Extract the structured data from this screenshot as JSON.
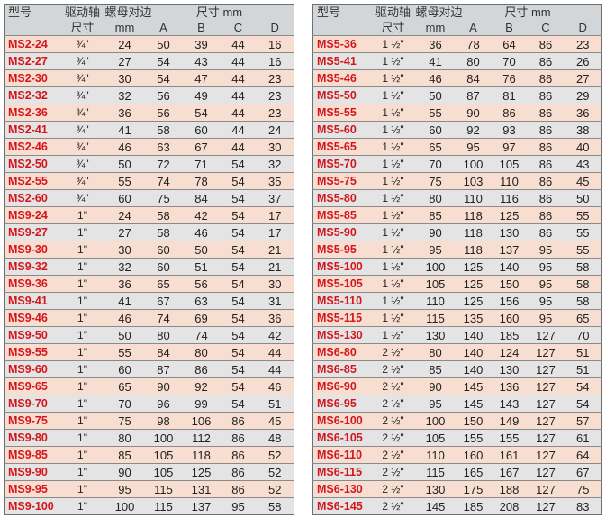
{
  "headers": {
    "model": "型号",
    "drive_top": "驱动轴",
    "drive_sub": "尺寸",
    "nut": "螺母对边",
    "size": "尺寸 mm",
    "mm": "mm",
    "a": "A",
    "b": "B",
    "c": "C",
    "d": "D"
  },
  "left_rows": [
    {
      "model": "MS2-24",
      "drive": "¾\"",
      "mm": "24",
      "a": "50",
      "b": "39",
      "c": "44",
      "d": "16"
    },
    {
      "model": "MS2-27",
      "drive": "¾\"",
      "mm": "27",
      "a": "54",
      "b": "43",
      "c": "44",
      "d": "16"
    },
    {
      "model": "MS2-30",
      "drive": "¾\"",
      "mm": "30",
      "a": "54",
      "b": "47",
      "c": "44",
      "d": "23"
    },
    {
      "model": "MS2-32",
      "drive": "¾\"",
      "mm": "32",
      "a": "56",
      "b": "49",
      "c": "44",
      "d": "23"
    },
    {
      "model": "MS2-36",
      "drive": "¾\"",
      "mm": "36",
      "a": "56",
      "b": "54",
      "c": "44",
      "d": "23"
    },
    {
      "model": "MS2-41",
      "drive": "¾\"",
      "mm": "41",
      "a": "58",
      "b": "60",
      "c": "44",
      "d": "24"
    },
    {
      "model": "MS2-46",
      "drive": "¾\"",
      "mm": "46",
      "a": "63",
      "b": "67",
      "c": "44",
      "d": "30"
    },
    {
      "model": "MS2-50",
      "drive": "¾\"",
      "mm": "50",
      "a": "72",
      "b": "71",
      "c": "54",
      "d": "32"
    },
    {
      "model": "MS2-55",
      "drive": "¾\"",
      "mm": "55",
      "a": "74",
      "b": "78",
      "c": "54",
      "d": "35"
    },
    {
      "model": "MS2-60",
      "drive": "¾\"",
      "mm": "60",
      "a": "75",
      "b": "84",
      "c": "54",
      "d": "37"
    },
    {
      "model": "MS9-24",
      "drive": "1\"",
      "mm": "24",
      "a": "58",
      "b": "42",
      "c": "54",
      "d": "17"
    },
    {
      "model": "MS9-27",
      "drive": "1\"",
      "mm": "27",
      "a": "58",
      "b": "46",
      "c": "54",
      "d": "17"
    },
    {
      "model": "MS9-30",
      "drive": "1\"",
      "mm": "30",
      "a": "60",
      "b": "50",
      "c": "54",
      "d": "21"
    },
    {
      "model": "MS9-32",
      "drive": "1\"",
      "mm": "32",
      "a": "60",
      "b": "51",
      "c": "54",
      "d": "21"
    },
    {
      "model": "MS9-36",
      "drive": "1\"",
      "mm": "36",
      "a": "65",
      "b": "56",
      "c": "54",
      "d": "30"
    },
    {
      "model": "MS9-41",
      "drive": "1\"",
      "mm": "41",
      "a": "67",
      "b": "63",
      "c": "54",
      "d": "31"
    },
    {
      "model": "MS9-46",
      "drive": "1\"",
      "mm": "46",
      "a": "74",
      "b": "69",
      "c": "54",
      "d": "36"
    },
    {
      "model": "MS9-50",
      "drive": "1\"",
      "mm": "50",
      "a": "80",
      "b": "74",
      "c": "54",
      "d": "42"
    },
    {
      "model": "MS9-55",
      "drive": "1\"",
      "mm": "55",
      "a": "84",
      "b": "80",
      "c": "54",
      "d": "44"
    },
    {
      "model": "MS9-60",
      "drive": "1\"",
      "mm": "60",
      "a": "87",
      "b": "86",
      "c": "54",
      "d": "44"
    },
    {
      "model": "MS9-65",
      "drive": "1\"",
      "mm": "65",
      "a": "90",
      "b": "92",
      "c": "54",
      "d": "46"
    },
    {
      "model": "MS9-70",
      "drive": "1\"",
      "mm": "70",
      "a": "96",
      "b": "99",
      "c": "54",
      "d": "51"
    },
    {
      "model": "MS9-75",
      "drive": "1\"",
      "mm": "75",
      "a": "98",
      "b": "106",
      "c": "86",
      "d": "45"
    },
    {
      "model": "MS9-80",
      "drive": "1\"",
      "mm": "80",
      "a": "100",
      "b": "112",
      "c": "86",
      "d": "48"
    },
    {
      "model": "MS9-85",
      "drive": "1\"",
      "mm": "85",
      "a": "105",
      "b": "118",
      "c": "86",
      "d": "52"
    },
    {
      "model": "MS9-90",
      "drive": "1\"",
      "mm": "90",
      "a": "105",
      "b": "125",
      "c": "86",
      "d": "52"
    },
    {
      "model": "MS9-95",
      "drive": "1\"",
      "mm": "95",
      "a": "115",
      "b": "131",
      "c": "86",
      "d": "52"
    },
    {
      "model": "MS9-100",
      "drive": "1\"",
      "mm": "100",
      "a": "115",
      "b": "137",
      "c": "95",
      "d": "58"
    }
  ],
  "right_rows": [
    {
      "model": "MS5-36",
      "drive": "1 ½\"",
      "mm": "36",
      "a": "78",
      "b": "64",
      "c": "86",
      "d": "23"
    },
    {
      "model": "MS5-41",
      "drive": "1 ½\"",
      "mm": "41",
      "a": "80",
      "b": "70",
      "c": "86",
      "d": "26"
    },
    {
      "model": "MS5-46",
      "drive": "1 ½\"",
      "mm": "46",
      "a": "84",
      "b": "76",
      "c": "86",
      "d": "27"
    },
    {
      "model": "MS5-50",
      "drive": "1 ½\"",
      "mm": "50",
      "a": "87",
      "b": "81",
      "c": "86",
      "d": "29"
    },
    {
      "model": "MS5-55",
      "drive": "1 ½\"",
      "mm": "55",
      "a": "90",
      "b": "86",
      "c": "86",
      "d": "36"
    },
    {
      "model": "MS5-60",
      "drive": "1 ½\"",
      "mm": "60",
      "a": "92",
      "b": "93",
      "c": "86",
      "d": "38"
    },
    {
      "model": "MS5-65",
      "drive": "1 ½\"",
      "mm": "65",
      "a": "95",
      "b": "97",
      "c": "86",
      "d": "40"
    },
    {
      "model": "MS5-70",
      "drive": "1 ½\"",
      "mm": "70",
      "a": "100",
      "b": "105",
      "c": "86",
      "d": "43"
    },
    {
      "model": "MS5-75",
      "drive": "1 ½\"",
      "mm": "75",
      "a": "103",
      "b": "110",
      "c": "86",
      "d": "45"
    },
    {
      "model": "MS5-80",
      "drive": "1 ½\"",
      "mm": "80",
      "a": "110",
      "b": "116",
      "c": "86",
      "d": "50"
    },
    {
      "model": "MS5-85",
      "drive": "1 ½\"",
      "mm": "85",
      "a": "118",
      "b": "125",
      "c": "86",
      "d": "55"
    },
    {
      "model": "MS5-90",
      "drive": "1 ½\"",
      "mm": "90",
      "a": "118",
      "b": "130",
      "c": "86",
      "d": "55"
    },
    {
      "model": "MS5-95",
      "drive": "1 ½\"",
      "mm": "95",
      "a": "118",
      "b": "137",
      "c": "95",
      "d": "55"
    },
    {
      "model": "MS5-100",
      "drive": "1 ½\"",
      "mm": "100",
      "a": "125",
      "b": "140",
      "c": "95",
      "d": "58"
    },
    {
      "model": "MS5-105",
      "drive": "1 ½\"",
      "mm": "105",
      "a": "125",
      "b": "150",
      "c": "95",
      "d": "58"
    },
    {
      "model": "MS5-110",
      "drive": "1 ½\"",
      "mm": "110",
      "a": "125",
      "b": "156",
      "c": "95",
      "d": "58"
    },
    {
      "model": "MS5-115",
      "drive": "1 ½\"",
      "mm": "115",
      "a": "135",
      "b": "160",
      "c": "95",
      "d": "65"
    },
    {
      "model": "MS5-130",
      "drive": "1 ½\"",
      "mm": "130",
      "a": "140",
      "b": "185",
      "c": "127",
      "d": "70"
    },
    {
      "model": "MS6-80",
      "drive": "2 ½\"",
      "mm": "80",
      "a": "140",
      "b": "124",
      "c": "127",
      "d": "51"
    },
    {
      "model": "MS6-85",
      "drive": "2 ½\"",
      "mm": "85",
      "a": "140",
      "b": "130",
      "c": "127",
      "d": "51"
    },
    {
      "model": "MS6-90",
      "drive": "2 ½\"",
      "mm": "90",
      "a": "145",
      "b": "136",
      "c": "127",
      "d": "54"
    },
    {
      "model": "MS6-95",
      "drive": "2 ½\"",
      "mm": "95",
      "a": "145",
      "b": "143",
      "c": "127",
      "d": "54"
    },
    {
      "model": "MS6-100",
      "drive": "2 ½\"",
      "mm": "100",
      "a": "150",
      "b": "149",
      "c": "127",
      "d": "57"
    },
    {
      "model": "MS6-105",
      "drive": "2 ½\"",
      "mm": "105",
      "a": "155",
      "b": "155",
      "c": "127",
      "d": "61"
    },
    {
      "model": "MS6-110",
      "drive": "2 ½\"",
      "mm": "110",
      "a": "160",
      "b": "161",
      "c": "127",
      "d": "64"
    },
    {
      "model": "MS6-115",
      "drive": "2 ½\"",
      "mm": "115",
      "a": "165",
      "b": "167",
      "c": "127",
      "d": "67"
    },
    {
      "model": "MS6-130",
      "drive": "2 ½\"",
      "mm": "130",
      "a": "175",
      "b": "188",
      "c": "127",
      "d": "75"
    },
    {
      "model": "MS6-145",
      "drive": "2 ½\"",
      "mm": "145",
      "a": "185",
      "b": "208",
      "c": "127",
      "d": "83"
    }
  ]
}
